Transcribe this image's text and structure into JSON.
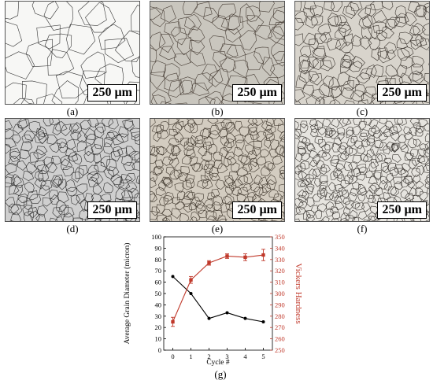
{
  "panels": [
    {
      "id": "a",
      "caption": "(a)",
      "scale": "250 µm",
      "tone": "#f7f7f5",
      "line": "#333333",
      "density": 0.6
    },
    {
      "id": "b",
      "caption": "(b)",
      "scale": "250 µm",
      "tone": "#c9c6be",
      "line": "#4a4038",
      "density": 1.0
    },
    {
      "id": "c",
      "caption": "(c)",
      "scale": "250 µm",
      "tone": "#d8d4cc",
      "line": "#3c3630",
      "density": 1.4
    },
    {
      "id": "d",
      "caption": "(d)",
      "scale": "250 µm",
      "tone": "#cfcfcf",
      "line": "#2f2f2f",
      "density": 1.6
    },
    {
      "id": "e",
      "caption": "(e)",
      "scale": "250 µm",
      "tone": "#d3ccc0",
      "line": "#40382e",
      "density": 1.8
    },
    {
      "id": "f",
      "caption": "(f)",
      "scale": "250 µm",
      "tone": "#e6e4df",
      "line": "#3a3632",
      "density": 2.0
    }
  ],
  "figure_g": {
    "caption": "(g)"
  },
  "chart_data": {
    "type": "line",
    "xlabel": "Cycle #",
    "ylabel_left": "Average Grain Diameter (micron)",
    "ylabel_right": "Vickers Hardness",
    "x": [
      0,
      1,
      2,
      3,
      4,
      5
    ],
    "xlim": [
      -0.5,
      5.5
    ],
    "ylim_left": [
      0,
      100
    ],
    "yticks_left": [
      0,
      10,
      20,
      30,
      40,
      50,
      60,
      70,
      80,
      90,
      100
    ],
    "ylim_right": [
      250,
      350
    ],
    "yticks_right": [
      250,
      260,
      270,
      280,
      290,
      300,
      310,
      320,
      330,
      340,
      350
    ],
    "series": [
      {
        "axis": "left",
        "color": "#000000",
        "values": [
          65,
          50,
          28,
          33,
          28,
          25
        ]
      },
      {
        "axis": "right",
        "color": "#c0392b",
        "values": [
          275,
          312,
          327,
          333,
          332,
          334
        ],
        "errors": [
          4,
          3,
          2,
          2,
          3,
          5
        ]
      }
    ]
  }
}
